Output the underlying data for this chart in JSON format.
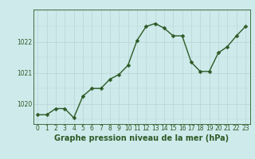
{
  "x": [
    0,
    1,
    2,
    3,
    4,
    5,
    6,
    7,
    8,
    9,
    10,
    11,
    12,
    13,
    14,
    15,
    16,
    17,
    18,
    19,
    20,
    21,
    22,
    23
  ],
  "y": [
    1019.65,
    1019.65,
    1019.85,
    1019.85,
    1019.55,
    1020.25,
    1020.5,
    1020.5,
    1020.8,
    1020.95,
    1021.25,
    1022.05,
    1022.5,
    1022.6,
    1022.45,
    1022.2,
    1022.2,
    1021.35,
    1021.05,
    1021.05,
    1021.65,
    1021.85,
    1022.2,
    1022.5
  ],
  "line_color": "#2d5a27",
  "marker_color": "#2d5a27",
  "bg_color": "#ceeaea",
  "grid_color": "#b8d4d4",
  "title": "Graphe pression niveau de la mer (hPa)",
  "ylim_min": 1019.35,
  "ylim_max": 1023.05,
  "yticks": [
    1020,
    1021,
    1022
  ],
  "xticks": [
    0,
    1,
    2,
    3,
    4,
    5,
    6,
    7,
    8,
    9,
    10,
    11,
    12,
    13,
    14,
    15,
    16,
    17,
    18,
    19,
    20,
    21,
    22,
    23
  ],
  "title_fontsize": 7,
  "tick_fontsize": 5.5,
  "line_width": 1.0,
  "marker_size": 2.5
}
